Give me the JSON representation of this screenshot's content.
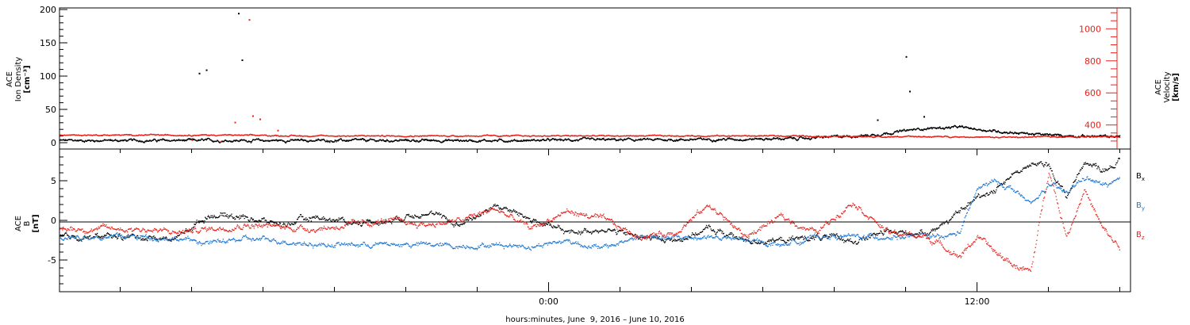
{
  "chart_data": [
    {
      "type": "scatter",
      "panel": "top",
      "ylabel_left": [
        "ACE",
        "Ion Density",
        "[cm⁻³]"
      ],
      "ylabel_right": [
        "ACE",
        "Velocity",
        "[km/s]"
      ],
      "ylim_left": [
        0,
        200
      ],
      "yticks_left": [
        "0",
        "50",
        "100",
        "150",
        "200"
      ],
      "ylim_right": [
        250,
        1130
      ],
      "yticks_right": [
        "400",
        "600",
        "800",
        "1000"
      ],
      "series": [
        {
          "name": "Ion Density",
          "axis": "left",
          "color": "#000000",
          "x": [
            -11.0,
            -9.0,
            -7.0,
            -5.0,
            -3.0,
            -1.0,
            1.0,
            3.0,
            5.0,
            7.0,
            9.0,
            10.5,
            11.5,
            12.5,
            14.0,
            15.5
          ],
          "y": [
            4,
            4,
            4,
            4,
            4,
            4,
            5,
            5,
            6,
            7,
            12,
            22,
            24,
            18,
            12,
            10
          ]
        },
        {
          "name": "Velocity",
          "axis": "right",
          "color": "#e8221b",
          "x": [
            -11.0,
            -9.0,
            -7.0,
            -5.0,
            -3.0,
            -1.0,
            1.0,
            3.0,
            5.0,
            7.0,
            9.0,
            10.5,
            11.5,
            12.5,
            14.0,
            15.5
          ],
          "y": [
            340,
            340,
            335,
            335,
            335,
            335,
            335,
            335,
            335,
            335,
            330,
            330,
            330,
            325,
            330,
            330
          ]
        }
      ],
      "outliers": {
        "density": [
          [
            -9.8,
            105
          ],
          [
            -9.6,
            110
          ],
          [
            -8.7,
            195
          ],
          [
            -8.6,
            125
          ],
          [
            10.0,
            130
          ],
          [
            10.1,
            78
          ],
          [
            9.2,
            35
          ],
          [
            10.5,
            40
          ]
        ],
        "velocity": [
          [
            -8.8,
            420
          ],
          [
            -8.4,
            1060
          ],
          [
            -8.3,
            460
          ],
          [
            -8.1,
            440
          ],
          [
            -7.6,
            370
          ],
          [
            -10.0,
            310
          ],
          [
            -9.2,
            300
          ]
        ]
      }
    },
    {
      "type": "scatter",
      "panel": "bottom",
      "ylabel": [
        "ACE",
        "B",
        "[nT]"
      ],
      "ylim": [
        -9,
        9
      ],
      "yticks": [
        "-5",
        "0",
        "5"
      ],
      "legend": [
        "Bx",
        "By",
        "Bz"
      ],
      "series": [
        {
          "name": "Bx",
          "color": "#000000",
          "x": [
            -11.5,
            -10.5,
            -9.5,
            -8.5,
            -7.5,
            -6.5,
            -5.5,
            -4.5,
            -3.5,
            -2.5,
            -1.5,
            -0.5,
            0.5,
            1.5,
            2.5,
            3.5,
            4.5,
            5.5,
            6.5,
            7.5,
            8.5,
            9.5,
            10.5,
            11.0,
            11.5,
            12.0,
            12.5,
            13.0,
            13.5,
            14.0,
            14.5,
            15.0,
            15.5,
            16.0
          ],
          "y": [
            -2.0,
            -2.3,
            0.8,
            0.5,
            -0.5,
            0.5,
            -0.2,
            0.0,
            1.2,
            -0.5,
            2.0,
            0.2,
            -1.5,
            -1.0,
            -2.0,
            -2.5,
            -1.0,
            -2.5,
            -2.5,
            -2.0,
            -2.5,
            -1.5,
            -1.5,
            -0.5,
            1.0,
            3.0,
            4.0,
            6.0,
            7.0,
            7.0,
            3.0,
            7.5,
            6.5,
            7.5
          ]
        },
        {
          "name": "By",
          "color": "#1e78d2",
          "x": [
            -11.5,
            -10.5,
            -9.5,
            -8.5,
            -7.5,
            -6.5,
            -5.5,
            -4.5,
            -3.5,
            -2.5,
            -1.5,
            -0.5,
            0.5,
            1.5,
            2.5,
            3.5,
            4.5,
            5.5,
            6.5,
            7.5,
            8.5,
            9.5,
            10.5,
            11.0,
            11.5,
            12.0,
            12.5,
            13.0,
            13.5,
            14.0,
            14.5,
            15.0,
            15.5,
            16.0
          ],
          "y": [
            -2.0,
            -2.2,
            -2.8,
            -2.3,
            -2.5,
            -3.0,
            -3.0,
            -3.0,
            -3.0,
            -3.2,
            -3.0,
            -3.2,
            -2.5,
            -3.5,
            -2.0,
            -2.2,
            -2.0,
            -2.5,
            -3.0,
            -2.0,
            -2.0,
            -2.0,
            -2.0,
            -2.2,
            -1.5,
            4.0,
            5.0,
            4.0,
            2.0,
            4.5,
            3.5,
            5.5,
            4.5,
            5.0
          ]
        },
        {
          "name": "Bz",
          "color": "#e8221b",
          "x": [
            -11.5,
            -10.5,
            -9.5,
            -8.5,
            -7.5,
            -6.5,
            -5.5,
            -4.5,
            -3.5,
            -2.5,
            -1.5,
            -0.5,
            0.5,
            1.5,
            2.5,
            3.5,
            4.5,
            5.5,
            6.5,
            7.5,
            8.5,
            9.5,
            10.5,
            11.0,
            11.5,
            12.0,
            12.5,
            13.0,
            13.5,
            14.0,
            14.5,
            15.0,
            15.5,
            16.0
          ],
          "y": [
            -1.0,
            -1.5,
            -1.0,
            -0.5,
            -0.8,
            -1.0,
            -0.5,
            0.0,
            -0.5,
            0.0,
            1.5,
            -1.0,
            1.2,
            0.2,
            -2.0,
            -1.5,
            2.0,
            -2.0,
            0.5,
            -1.5,
            2.5,
            -1.5,
            -2.0,
            -3.0,
            -4.5,
            -2.0,
            -4.0,
            -5.5,
            -6.5,
            6.5,
            -2.0,
            4.0,
            -1.0,
            -3.5
          ]
        }
      ]
    }
  ],
  "x_axis": {
    "range_hours": [
      -13.7,
      16.3
    ],
    "tick_labels": [
      {
        "hour": 0,
        "label": "0:00"
      },
      {
        "hour": 12,
        "label": "12:00"
      }
    ],
    "minor_tick_hours": [
      -12,
      -10,
      -8,
      -6,
      -4,
      -2,
      2,
      4,
      6,
      8,
      10,
      14,
      16
    ],
    "xlabel": "hours:minutes, June  9, 2016 – June 10, 2016"
  },
  "data_end_hour": 16.0,
  "colors": {
    "density": "#000000",
    "velocity": "#e8221b",
    "bx": "#000000",
    "by": "#1e78d2",
    "bz": "#e8221b",
    "frame": "#000000"
  }
}
